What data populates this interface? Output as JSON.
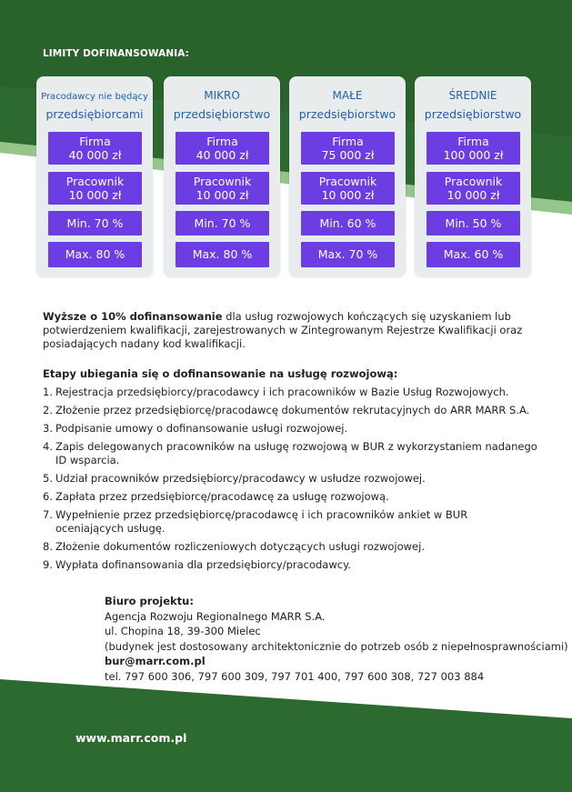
{
  "header": {
    "title": "LIMITY DOFINANSOWANIA:"
  },
  "cards": [
    {
      "subtitle": "Pracodawcy nie będący",
      "title": "przedsiębiorcami",
      "firma_label": "Firma",
      "firma_amount": "40 000 zł",
      "pracownik_label": "Pracownik",
      "pracownik_amount": "10 000 zł",
      "min": "Min. 70 %",
      "max": "Max. 80 %"
    },
    {
      "subtitle": "MIKRO",
      "title": "przedsiębiorstwo",
      "firma_label": "Firma",
      "firma_amount": "40 000 zł",
      "pracownik_label": "Pracownik",
      "pracownik_amount": "10 000 zł",
      "min": "Min. 70 %",
      "max": "Max. 80 %"
    },
    {
      "subtitle": "MAŁE",
      "title": "przedsiębiorstwo",
      "firma_label": "Firma",
      "firma_amount": "75 000 zł",
      "pracownik_label": "Pracownik",
      "pracownik_amount": "10 000 zł",
      "min": "Min. 60 %",
      "max": "Max. 70 %"
    },
    {
      "subtitle": "ŚREDNIE",
      "title": "przedsiębiorstwo",
      "firma_label": "Firma",
      "firma_amount": "100 000 zł",
      "pracownik_label": "Pracownik",
      "pracownik_amount": "10 000 zł",
      "min": "Min. 50 %",
      "max": "Max. 60 %"
    }
  ],
  "note": {
    "bold": "Wyższe o 10% dofinansowanie",
    "text": "dla usług rozwojowych kończących się uzyskaniem lub potwierdzeniem kwalifikacji, zarejestrowanych w Zintegrowanym Rejestrze Kwalifikacji oraz posiadających nadany kod kwalifikacji."
  },
  "steps": {
    "title": "Etapy ubiegania się o dofinansowanie na usługę rozwojową:",
    "items": [
      {
        "number": "1.",
        "text": "Rejestracja przedsiębiorcy/pracodawcy i ich pracowników w Bazie Usług Rozwojowych."
      },
      {
        "number": "2.",
        "text": "Złożenie przez przedsiębiorcę/pracodawcę dokumentów rekrutacyjnych do ARR MARR S.A."
      },
      {
        "number": "3.",
        "text": "Podpisanie umowy o dofinansowanie usługi rozwojowej."
      },
      {
        "number": "4.",
        "text": "Zapis delegowanych pracowników na usługę rozwojową w BUR z wykorzystaniem nadanego ID wsparcia."
      },
      {
        "number": "5.",
        "text": "Udział pracowników przedsiębiorcy/pracodawcy w usłudze rozwojowej."
      },
      {
        "number": "6.",
        "text": "Zapłata przez przedsiębiorcę/pracodawcę za usługę rozwojową."
      },
      {
        "number": "7.",
        "text": "Wypełnienie przez przedsiębiorcę/pracodawcę i ich pracowników ankiet w BUR oceniających usługę."
      },
      {
        "number": "8.",
        "text": "Złożenie dokumentów rozliczeniowych dotyczących usługi rozwojowej."
      },
      {
        "number": "9.",
        "text": "Wypłata dofinansowania dla przedsiębiorcy/pracodawcy."
      }
    ]
  },
  "contact": {
    "title": "Biuro projektu:",
    "lines": [
      "Agencja Rozwoju Regionalnego MARR S.A.",
      "ul. Chopina 18, 39-300 Mielec",
      "(budynek jest dostosowany architektonicznie do potrzeb osób z niepełnosprawnościami)"
    ],
    "email": "bur@marr.com.pl",
    "phone": "tel. 797 600 306, 797 600 309, 797 701 400, 797 600 308, 727 003 884"
  },
  "footer": {
    "url": "www.marr.com.pl"
  }
}
